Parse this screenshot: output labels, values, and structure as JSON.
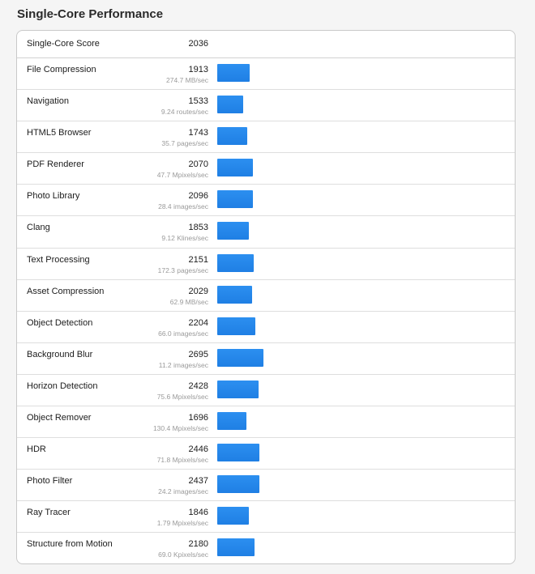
{
  "page": {
    "title": "Single-Core Performance"
  },
  "summary": {
    "label": "Single-Core Score",
    "score": "2036"
  },
  "theme": {
    "bar_color": "#1f84ea",
    "max_score_for_bar": 2695
  },
  "workloads": [
    {
      "name": "File Compression",
      "score": "1913",
      "rate": "274.7 MB/sec"
    },
    {
      "name": "Navigation",
      "score": "1533",
      "rate": "9.24 routes/sec"
    },
    {
      "name": "HTML5 Browser",
      "score": "1743",
      "rate": "35.7 pages/sec"
    },
    {
      "name": "PDF Renderer",
      "score": "2070",
      "rate": "47.7 Mpixels/sec"
    },
    {
      "name": "Photo Library",
      "score": "2096",
      "rate": "28.4 images/sec"
    },
    {
      "name": "Clang",
      "score": "1853",
      "rate": "9.12 Klines/sec"
    },
    {
      "name": "Text Processing",
      "score": "2151",
      "rate": "172.3 pages/sec"
    },
    {
      "name": "Asset Compression",
      "score": "2029",
      "rate": "62.9 MB/sec"
    },
    {
      "name": "Object Detection",
      "score": "2204",
      "rate": "66.0 images/sec"
    },
    {
      "name": "Background Blur",
      "score": "2695",
      "rate": "11.2 images/sec"
    },
    {
      "name": "Horizon Detection",
      "score": "2428",
      "rate": "75.6 Mpixels/sec"
    },
    {
      "name": "Object Remover",
      "score": "1696",
      "rate": "130.4 Mpixels/sec"
    },
    {
      "name": "HDR",
      "score": "2446",
      "rate": "71.8 Mpixels/sec"
    },
    {
      "name": "Photo Filter",
      "score": "2437",
      "rate": "24.2 images/sec"
    },
    {
      "name": "Ray Tracer",
      "score": "1846",
      "rate": "1.79 Mpixels/sec"
    },
    {
      "name": "Structure from Motion",
      "score": "2180",
      "rate": "69.0 Kpixels/sec"
    }
  ]
}
